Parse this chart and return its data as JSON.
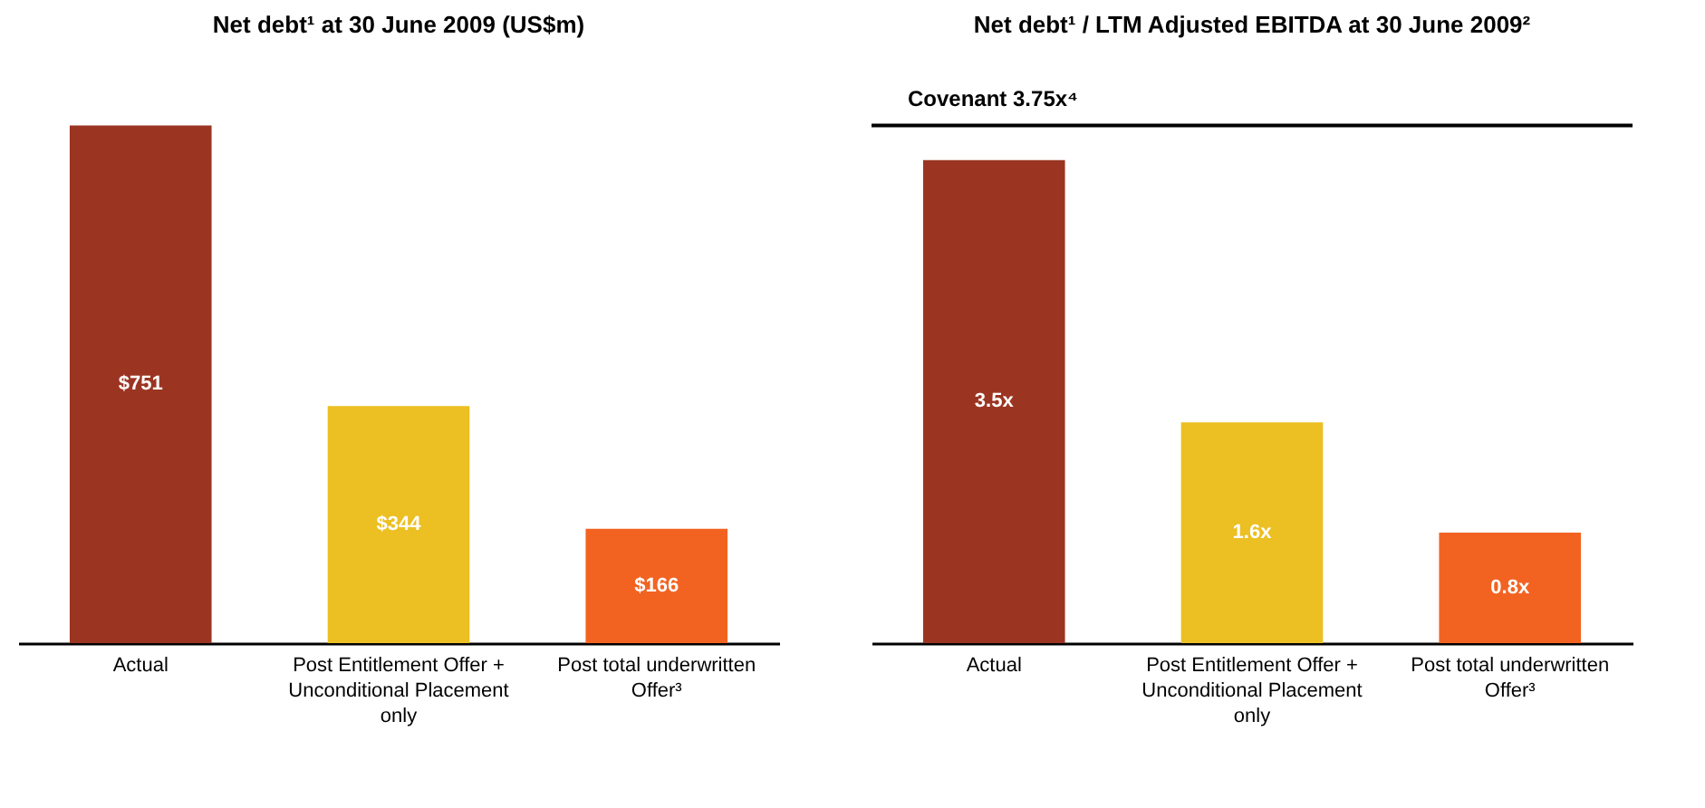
{
  "chart_data": [
    {
      "type": "bar",
      "title": "Net debt¹ at 30 June 2009 (US$m)",
      "categories": [
        "Actual",
        "Post Entitlement Offer + Unconditional Placement only",
        "Post total underwritten Offer³"
      ],
      "values": [
        751,
        344,
        166
      ],
      "colors": [
        "#9b3522",
        "#ecbf22",
        "#f26322"
      ],
      "value_labels": [
        "$751",
        "$344",
        "$166"
      ],
      "grid": false,
      "legend": false
    },
    {
      "type": "bar",
      "title": "Net debt¹ / LTM Adjusted EBITDA at 30 June 2009²",
      "categories": [
        "Actual",
        "Post Entitlement Offer + Unconditional Placement only",
        "Post total underwritten Offer³"
      ],
      "values": [
        3.5,
        1.6,
        0.8
      ],
      "colors": [
        "#9b3522",
        "#ecbf22",
        "#f26322"
      ],
      "value_labels": [
        "3.5x",
        "1.6x",
        "0.8x"
      ],
      "ref_lines": [
        {
          "axis": "y",
          "value": 3.75,
          "label": "Covenant 3.75x⁴",
          "color": "#000000"
        }
      ],
      "grid": false,
      "legend": false
    }
  ]
}
